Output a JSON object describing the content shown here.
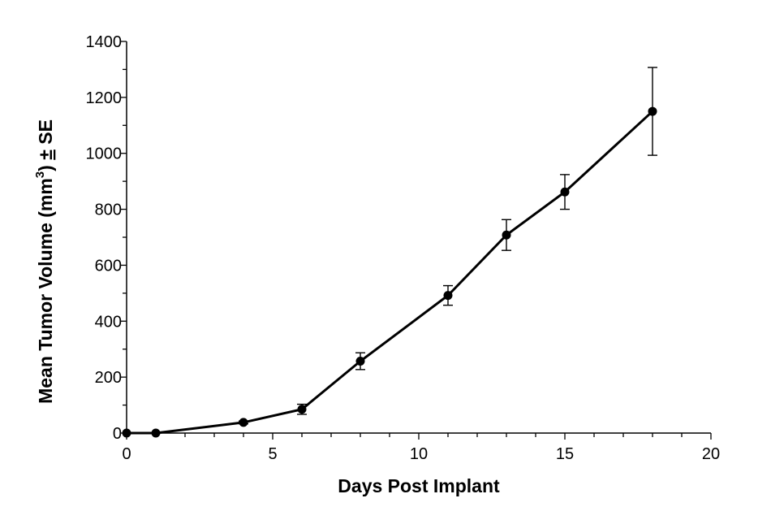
{
  "chart_data": {
    "type": "line",
    "title": "",
    "xlabel": "Days Post Implant",
    "ylabel": {
      "prefix": "Mean Tumor Volume (mm",
      "superscript": "3",
      "suffix_pm": "±",
      "suffix": "SE"
    },
    "xlim": [
      0,
      20
    ],
    "ylim": [
      0,
      1400
    ],
    "x_ticks": [
      0,
      5,
      10,
      15,
      20
    ],
    "y_ticks": [
      0,
      200,
      400,
      600,
      800,
      1000,
      1200,
      1400
    ],
    "x_minor_step": 1,
    "y_minor_step": 100,
    "grid": false,
    "legend": "none",
    "line_color": "#000000",
    "series": [
      {
        "x": [
          0,
          1,
          4,
          6,
          8,
          11,
          13,
          15,
          18
        ],
        "y": [
          0,
          0,
          38,
          85,
          257,
          492,
          708,
          862,
          1150
        ],
        "error": [
          0,
          0,
          5,
          18,
          30,
          35,
          55,
          62,
          157
        ]
      }
    ]
  }
}
